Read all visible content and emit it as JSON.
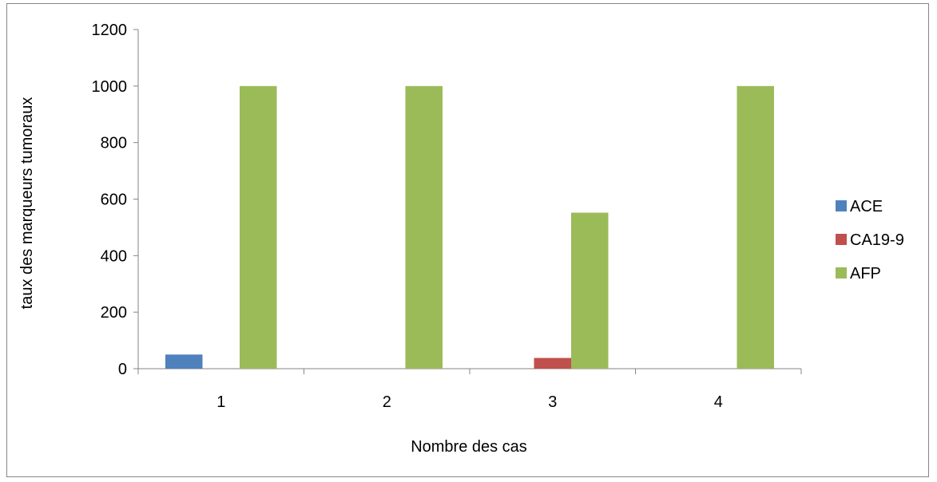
{
  "chart_data": {
    "type": "bar",
    "title": "",
    "xlabel": "Nombre des cas",
    "ylabel": "taux des marqueurs tumoraux",
    "categories": [
      "1",
      "2",
      "3",
      "4"
    ],
    "series": [
      {
        "name": "ACE",
        "color": "#4F81BD",
        "values": [
          50,
          0,
          0,
          0
        ]
      },
      {
        "name": "CA19-9",
        "color": "#C0504D",
        "values": [
          0,
          0,
          38,
          0
        ]
      },
      {
        "name": "AFP",
        "color": "#9BBB59",
        "values": [
          1000,
          1000,
          552,
          1000
        ]
      }
    ],
    "ylim": [
      0,
      1200
    ],
    "yticks": [
      0,
      200,
      400,
      600,
      800,
      1000,
      1200
    ],
    "grid": false,
    "legend_position": "right"
  }
}
